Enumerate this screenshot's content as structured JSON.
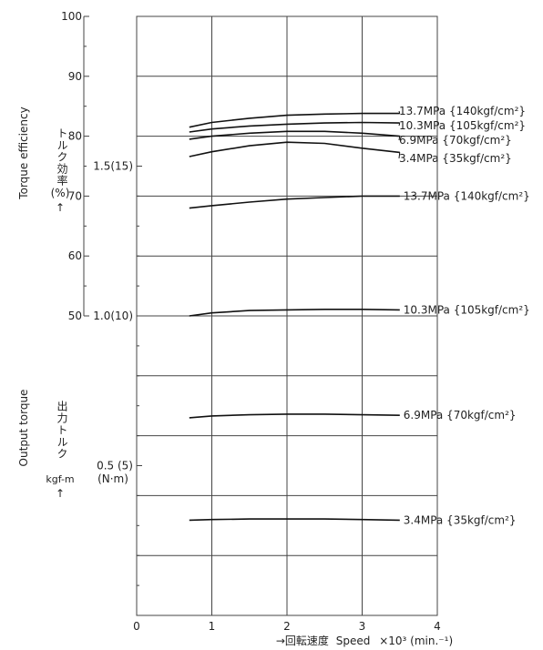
{
  "chart_data": {
    "type": "line",
    "x_axis": {
      "ticks": [
        "0",
        "1",
        "2",
        "3",
        "4"
      ],
      "xlim": [
        0,
        4
      ],
      "label_jp": "→回転速度",
      "label_en": "Speed",
      "label_unit": "×10³ (min.⁻¹)"
    },
    "efficiency_axis": {
      "ylim": [
        0,
        100
      ],
      "ticks": [
        "50",
        "60",
        "70",
        "80",
        "90",
        "100"
      ],
      "label_en": "Torque efficiency",
      "label_jp": "トルク効率",
      "label_unit": "(%)",
      "arrow": "↑"
    },
    "torque_axis": {
      "ylim": [
        0,
        2.0
      ],
      "ticks": [
        "1.5(15)",
        "1.0(10)",
        "0.5 (5)"
      ],
      "label_en": "Output torque",
      "label_jp": "出力トルク",
      "label_unit": "kgf-m",
      "label_unit2": "(N·m)",
      "arrow": "↑"
    },
    "grid": true,
    "efficiency_series": [
      {
        "name": "13.7MPa {140kgf/cm²}",
        "x": [
          0.7,
          1.0,
          1.5,
          2.0,
          2.5,
          3.0,
          3.5
        ],
        "y": [
          81.5,
          82.3,
          83.0,
          83.5,
          83.7,
          83.8,
          83.8
        ]
      },
      {
        "name": "10.3MPa {105kgf/cm²}",
        "x": [
          0.7,
          1.0,
          1.5,
          2.0,
          2.5,
          3.0,
          3.5
        ],
        "y": [
          80.7,
          81.2,
          81.7,
          82.0,
          82.2,
          82.3,
          82.2
        ]
      },
      {
        "name": "6.9MPa {70kgf/cm²}",
        "x": [
          0.7,
          1.0,
          1.5,
          2.0,
          2.5,
          3.0,
          3.5
        ],
        "y": [
          79.5,
          80.0,
          80.5,
          80.8,
          80.8,
          80.5,
          80.0
        ]
      },
      {
        "name": "3.4MPa {35kgf/cm²}",
        "x": [
          0.7,
          1.0,
          1.5,
          2.0,
          2.5,
          3.0,
          3.5
        ],
        "y": [
          76.6,
          77.4,
          78.4,
          79.0,
          78.8,
          78.0,
          77.3
        ]
      }
    ],
    "torque_series": [
      {
        "name": "13.7MPa {140kgf/cm²}",
        "x": [
          0.7,
          1.0,
          1.5,
          2.0,
          2.5,
          3.0,
          3.5
        ],
        "y": [
          1.36,
          1.368,
          1.38,
          1.39,
          1.395,
          1.4,
          1.4
        ]
      },
      {
        "name": "10.3MPa {105kgf/cm²}",
        "x": [
          0.7,
          1.0,
          1.5,
          2.0,
          2.5,
          3.0,
          3.5
        ],
        "y": [
          1.0,
          1.01,
          1.018,
          1.02,
          1.022,
          1.022,
          1.02
        ]
      },
      {
        "name": "6.9MPa {70kgf/cm²}",
        "x": [
          0.7,
          1.0,
          1.5,
          2.0,
          2.5,
          3.0,
          3.5
        ],
        "y": [
          0.66,
          0.666,
          0.67,
          0.672,
          0.672,
          0.67,
          0.668
        ]
      },
      {
        "name": "3.4MPa {35kgf/cm²}",
        "x": [
          0.7,
          1.0,
          1.5,
          2.0,
          2.5,
          3.0,
          3.5
        ],
        "y": [
          0.318,
          0.32,
          0.322,
          0.322,
          0.322,
          0.32,
          0.318
        ]
      }
    ]
  }
}
